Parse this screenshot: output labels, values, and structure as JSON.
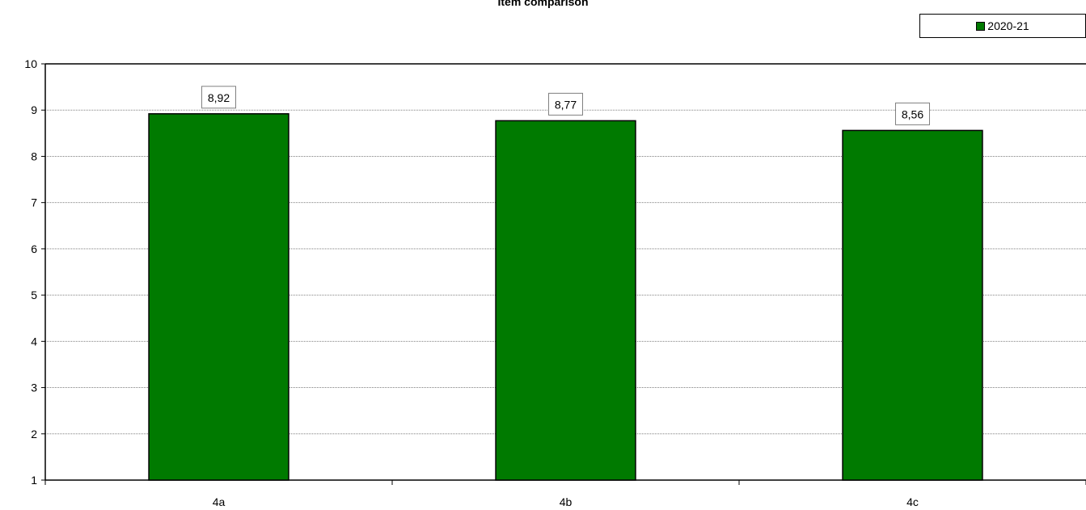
{
  "chart_data": {
    "type": "bar",
    "title": "Item comparison",
    "categories": [
      "4a",
      "4b",
      "4c"
    ],
    "series": [
      {
        "name": "2020-21",
        "values": [
          8.92,
          8.77,
          8.56
        ],
        "value_labels": [
          "8,92",
          "8,77",
          "8,56"
        ]
      }
    ],
    "ylim": [
      1,
      10
    ],
    "y_ticks": [
      "1",
      "2",
      "3",
      "4",
      "5",
      "6",
      "7",
      "8",
      "9",
      "10"
    ],
    "xlabel": "",
    "ylabel": "",
    "grid": true,
    "legend_position": "top-right",
    "bar_color": "#007a00"
  }
}
